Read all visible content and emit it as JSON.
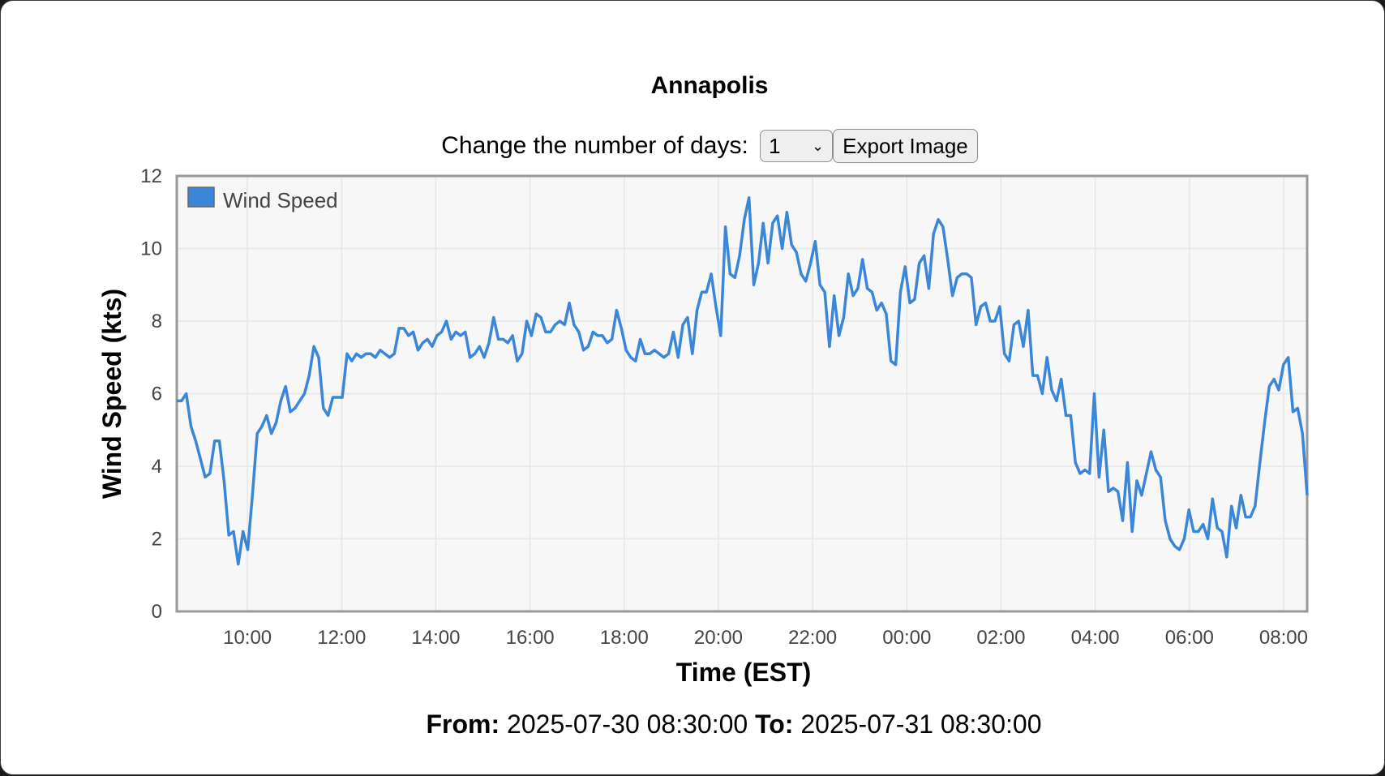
{
  "title": "Annapolis",
  "controls": {
    "days_label": "Change the number of days:",
    "days_value": "1",
    "export_label": "Export Image"
  },
  "footer": {
    "from_label": "From:",
    "from_value": "2025-07-30 08:30:00",
    "to_label": "To:",
    "to_value": "2025-07-31 08:30:00"
  },
  "colors": {
    "series": "#3a86d8",
    "plot_bg": "#f7f7f7",
    "grid": "#e6e6e6",
    "border": "#999999"
  },
  "chart_data": {
    "type": "line",
    "xlabel": "Time (EST)",
    "ylabel": "Wind Speed (kts)",
    "ylim": [
      0,
      12
    ],
    "yticks": [
      0,
      2,
      4,
      6,
      8,
      10,
      12
    ],
    "xlim": [
      "2025-07-30 08:30",
      "2025-07-31 08:30"
    ],
    "xticks": [
      "10:00",
      "12:00",
      "14:00",
      "16:00",
      "18:00",
      "20:00",
      "22:00",
      "00:00",
      "02:00",
      "04:00",
      "06:00",
      "08:00"
    ],
    "grid": true,
    "legend": "top-left",
    "series": [
      {
        "name": "Wind Speed",
        "values": [
          5.8,
          5.8,
          6.0,
          5.1,
          4.7,
          4.2,
          3.7,
          3.8,
          4.7,
          4.7,
          3.6,
          2.1,
          2.2,
          1.3,
          2.2,
          1.7,
          3.2,
          4.9,
          5.1,
          5.4,
          4.9,
          5.2,
          5.8,
          6.2,
          5.5,
          5.6,
          5.8,
          6.0,
          6.5,
          7.3,
          7.0,
          5.6,
          5.4,
          5.9,
          5.9,
          5.9,
          7.1,
          6.9,
          7.1,
          7.0,
          7.1,
          7.1,
          7.0,
          7.2,
          7.1,
          7.0,
          7.1,
          7.8,
          7.8,
          7.6,
          7.7,
          7.2,
          7.4,
          7.5,
          7.3,
          7.6,
          7.7,
          8.0,
          7.5,
          7.7,
          7.6,
          7.7,
          7.0,
          7.1,
          7.3,
          7.0,
          7.4,
          8.1,
          7.5,
          7.5,
          7.4,
          7.6,
          6.9,
          7.1,
          8.0,
          7.6,
          8.2,
          8.1,
          7.7,
          7.7,
          7.9,
          8.0,
          7.9,
          8.5,
          7.9,
          7.7,
          7.2,
          7.3,
          7.7,
          7.6,
          7.6,
          7.4,
          7.5,
          8.3,
          7.8,
          7.2,
          7.0,
          6.9,
          7.5,
          7.1,
          7.1,
          7.2,
          7.1,
          7.0,
          7.1,
          7.7,
          7.0,
          7.9,
          8.1,
          7.1,
          8.3,
          8.8,
          8.8,
          9.3,
          8.4,
          7.6,
          10.6,
          9.3,
          9.2,
          9.8,
          10.8,
          11.4,
          9.0,
          9.6,
          10.7,
          9.6,
          10.7,
          10.9,
          10.0,
          11.0,
          10.1,
          9.9,
          9.3,
          9.1,
          9.6,
          10.2,
          9.0,
          8.8,
          7.3,
          8.7,
          7.6,
          8.1,
          9.3,
          8.7,
          8.9,
          9.7,
          8.9,
          8.8,
          8.3,
          8.5,
          8.2,
          6.9,
          6.8,
          8.8,
          9.5,
          8.5,
          8.6,
          9.6,
          9.8,
          8.9,
          10.4,
          10.8,
          10.6,
          9.7,
          8.7,
          9.2,
          9.3,
          9.3,
          9.2,
          7.9,
          8.4,
          8.5,
          8.0,
          8.0,
          8.4,
          7.1,
          6.9,
          7.9,
          8.0,
          7.3,
          8.3,
          6.5,
          6.5,
          6.0,
          7.0,
          6.1,
          5.8,
          6.4,
          5.4,
          5.4,
          4.1,
          3.8,
          3.9,
          3.8,
          6.0,
          3.7,
          5.0,
          3.3,
          3.4,
          3.3,
          2.5,
          4.1,
          2.2,
          3.6,
          3.2,
          3.8,
          4.4,
          3.9,
          3.7,
          2.5,
          2.0,
          1.8,
          1.7,
          2.0,
          2.8,
          2.2,
          2.2,
          2.4,
          2.0,
          3.1,
          2.3,
          2.2,
          1.5,
          2.9,
          2.3,
          3.2,
          2.6,
          2.6,
          2.9,
          4.1,
          5.2,
          6.2,
          6.4,
          6.1,
          6.8,
          7.0,
          5.5,
          5.6,
          4.9,
          3.2
        ]
      }
    ]
  }
}
